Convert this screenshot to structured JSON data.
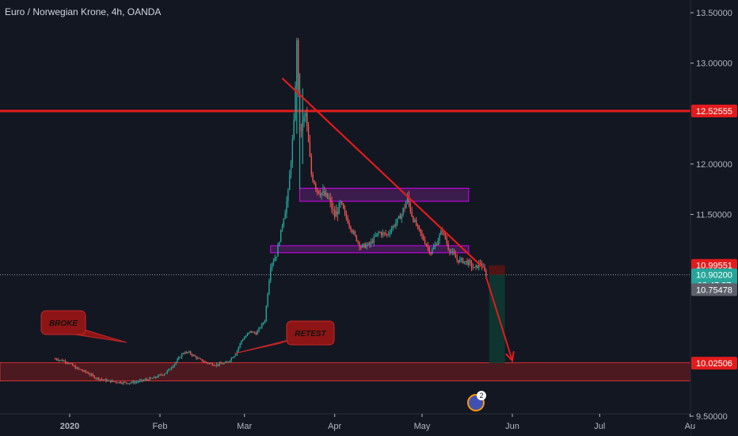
{
  "header": {
    "title": "Euro / Norwegian Krone, 4h, OANDA"
  },
  "colors": {
    "background": "#131722",
    "up": "#26a69a",
    "down": "#ef5350",
    "resistance_line": "#e31b1b",
    "trendline": "#e31b1b",
    "zone_purple": "#9c27b0",
    "support_zone": "#b71c1c",
    "green_line": "#4caf50",
    "callout_fill": "#8e1515"
  },
  "chart_data": {
    "type": "candlestick",
    "title": "Euro / Norwegian Krone, 4h, OANDA",
    "xlabel": "",
    "ylabel": "",
    "ylim": [
      9.45,
      13.6
    ],
    "x_ticks": [
      "2020",
      "Feb",
      "Mar",
      "Apr",
      "May",
      "Jun",
      "Jul",
      "Au"
    ],
    "y_ticks": [
      "13.50000",
      "13.00000",
      "12.00000",
      "11.50000",
      "9.50000"
    ],
    "price_labels": [
      {
        "text": "12.52555",
        "value": 12.52555,
        "color": "#e31b1b"
      },
      {
        "text": "10.99551",
        "value": 10.99551,
        "color": "#e31b1b"
      },
      {
        "text": "10.90200",
        "value": 10.902,
        "color": "#26a69a"
      },
      {
        "text": "02:47:37",
        "value": 10.8,
        "color": "#26a69a"
      },
      {
        "text": "10.75478",
        "value": 10.75478,
        "color": "#5d606b"
      },
      {
        "text": "10.02506",
        "value": 10.02506,
        "color": "#e31b1b"
      }
    ],
    "horizontal_lines": [
      {
        "value": 12.52555,
        "color": "#e31b1b"
      },
      {
        "value": 9.52,
        "color": "#4caf50"
      }
    ],
    "last_price": 10.902,
    "support_zone": [
      9.85,
      10.03
    ],
    "resistance_boxes": [
      {
        "from": "Mar 20",
        "to": "May 17",
        "low": 11.63,
        "high": 11.76
      },
      {
        "from": "Mar 10",
        "to": "May 17",
        "low": 11.12,
        "high": 11.19
      }
    ],
    "trendline": {
      "from": {
        "date": "Mar 14",
        "value": 12.85
      },
      "to": {
        "date": "May 22",
        "value": 10.97
      }
    },
    "forecast_arrow": {
      "from": {
        "date": "May 23",
        "value": 10.88
      },
      "to": {
        "date": "Jun 1",
        "value": 10.05
      }
    },
    "short_position": {
      "entry": 10.902,
      "stop": 10.99551,
      "target": 10.02506
    },
    "annotations": [
      {
        "text": "BROKE"
      },
      {
        "text": "RETEST"
      }
    ],
    "events_badge": "2",
    "series": [
      {
        "values": [
          [
            "Dec 27",
            10.07
          ],
          [
            "Dec 31",
            10.04
          ],
          [
            "Jan 3",
            9.98
          ],
          [
            "Jan 7",
            9.93
          ],
          [
            "Jan 10",
            9.88
          ],
          [
            "Jan 14",
            9.85
          ],
          [
            "Jan 17",
            9.84
          ],
          [
            "Jan 21",
            9.83
          ],
          [
            "Jan 24",
            9.84
          ],
          [
            "Jan 27",
            9.86
          ],
          [
            "Jan 30",
            9.88
          ],
          [
            "Feb 3",
            9.93
          ],
          [
            "Feb 6",
            10.02
          ],
          [
            "Feb 9",
            10.13
          ],
          [
            "Feb 11",
            10.13
          ],
          [
            "Feb 14",
            10.07
          ],
          [
            "Feb 17",
            10.03
          ],
          [
            "Feb 20",
            10.01
          ],
          [
            "Feb 24",
            10.03
          ],
          [
            "Feb 27",
            10.12
          ],
          [
            "Feb 29",
            10.25
          ],
          [
            "Mar 3",
            10.34
          ],
          [
            "Mar 5",
            10.32
          ],
          [
            "Mar 8",
            10.45
          ],
          [
            "Mar 9",
            10.73
          ],
          [
            "Mar 10",
            11.0
          ],
          [
            "Mar 12",
            11.1
          ],
          [
            "Mar 14",
            11.4
          ],
          [
            "Mar 16",
            11.7
          ],
          [
            "Mar 18",
            12.4
          ],
          [
            "Mar 19",
            13.2
          ],
          [
            "Mar 20",
            12.3
          ],
          [
            "Mar 22",
            12.5
          ],
          [
            "Mar 24",
            11.9
          ],
          [
            "Mar 26",
            11.75
          ],
          [
            "Mar 28",
            11.7
          ],
          [
            "Mar 30",
            11.65
          ],
          [
            "Apr 1",
            11.48
          ],
          [
            "Apr 3",
            11.6
          ],
          [
            "Apr 6",
            11.4
          ],
          [
            "Apr 8",
            11.28
          ],
          [
            "Apr 10",
            11.18
          ],
          [
            "Apr 13",
            11.2
          ],
          [
            "Apr 16",
            11.32
          ],
          [
            "Apr 19",
            11.3
          ],
          [
            "Apr 22",
            11.42
          ],
          [
            "Apr 24",
            11.5
          ],
          [
            "Apr 26",
            11.66
          ],
          [
            "Apr 28",
            11.45
          ],
          [
            "May 1",
            11.28
          ],
          [
            "May 4",
            11.12
          ],
          [
            "May 6",
            11.22
          ],
          [
            "May 8",
            11.35
          ],
          [
            "May 10",
            11.17
          ],
          [
            "May 13",
            11.05
          ],
          [
            "May 15",
            11.04
          ],
          [
            "May 17",
            11.02
          ],
          [
            "May 19",
            10.96
          ],
          [
            "May 21",
            11.02
          ],
          [
            "May 23",
            10.9
          ]
        ]
      }
    ]
  }
}
